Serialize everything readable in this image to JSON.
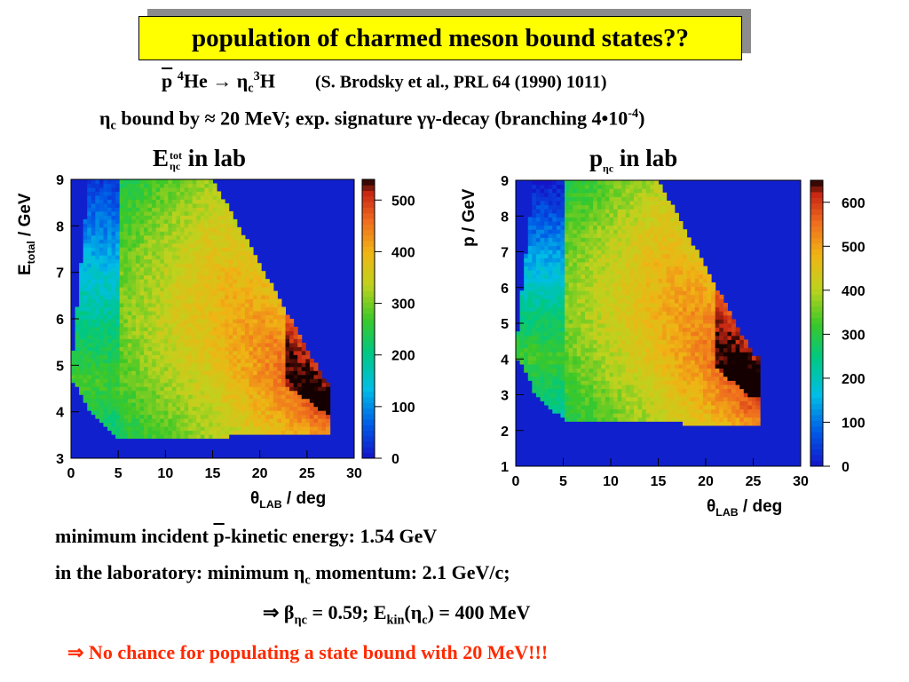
{
  "title": "population of charmed meson bound states??",
  "reaction": {
    "lhs": "p",
    "he": "He",
    "he_mass": "4",
    "arrow": "→",
    "eta": "η",
    "c": "c",
    "h_mass": "3",
    "h": "H",
    "ref": "(S. Brodsky et al., PRL 64 (1990) 1011)"
  },
  "binding_line": {
    "eta": "η",
    "c": "c",
    "text1": " bound by ≈ 20 MeV; exp. signature γγ-decay (branching 4•10",
    "exp": "-4",
    "text2": ")"
  },
  "bottom": {
    "line1a": "minimum incident ",
    "line1_pbar": "p",
    "line1b": "-kinetic energy:  1.54 GeV",
    "line2a": "in the laboratory:  minimum η",
    "line2_c": "c",
    "line2b": " momentum: 2.1 GeV/c;",
    "line3a": "⇒ β",
    "line3_sub": "ηc",
    "line3b": " = 0.59; E",
    "line3_kin": "kin",
    "line3c": "(η",
    "line3_c": "c",
    "line3d": ") = 400 MeV",
    "conclusion": "⇒ No chance for populating a state bound with 20 MeV!!!"
  },
  "chart_data": [
    {
      "type": "heatmap",
      "title": {
        "main": "E",
        "sup": "tot",
        "sub": "ηc",
        "rest": " in lab"
      },
      "xlabel": {
        "pre": "θ",
        "sub": "LAB",
        "post": " / deg"
      },
      "ylabel": {
        "pre": "E",
        "sub": "total",
        "post": " / GeV"
      },
      "xlim": [
        0,
        30
      ],
      "ylim": [
        3,
        9
      ],
      "xticks": [
        0,
        5,
        10,
        15,
        20,
        25,
        30
      ],
      "yticks": [
        3,
        4,
        5,
        6,
        7,
        8,
        9
      ],
      "zlim": [
        0,
        540
      ],
      "zticks": [
        0,
        100,
        200,
        300,
        400,
        500
      ],
      "region": {
        "apex": [
          0,
          4.65
        ],
        "top": [
          [
            0,
            9.0
          ],
          [
            15,
            9.0
          ],
          [
            26,
            5.0
          ],
          [
            27,
            4.6
          ]
        ],
        "bottom": [
          [
            0,
            4.4
          ],
          [
            5,
            3.4
          ],
          [
            30,
            3.55
          ]
        ],
        "tip": [
          27.5,
          4.6
        ]
      },
      "peak_value": 540
    },
    {
      "type": "heatmap",
      "title": {
        "main": "p",
        "sub": "ηc",
        "rest": " in lab"
      },
      "xlabel": {
        "pre": "θ",
        "sub": "LAB",
        "post": " / deg"
      },
      "ylabel": {
        "pre": "p / GeV",
        "sub": "",
        "post": ""
      },
      "xlim": [
        0,
        30
      ],
      "ylim": [
        1,
        9
      ],
      "xticks": [
        0,
        5,
        10,
        15,
        20,
        25,
        30
      ],
      "yticks": [
        1,
        2,
        3,
        4,
        5,
        6,
        7,
        8,
        9
      ],
      "zlim": [
        0,
        650
      ],
      "zticks": [
        0,
        100,
        200,
        300,
        400,
        500,
        600
      ],
      "region": {
        "apex": [
          0,
          4.05
        ],
        "top": [
          [
            0,
            9.0
          ],
          [
            15,
            9.0
          ],
          [
            24,
            4.6
          ],
          [
            25,
            4.1
          ]
        ],
        "bottom": [
          [
            0,
            3.6
          ],
          [
            5,
            2.3
          ],
          [
            30,
            2.1
          ]
        ],
        "tip": [
          25.5,
          4.1
        ]
      },
      "peak_value": 650
    }
  ]
}
